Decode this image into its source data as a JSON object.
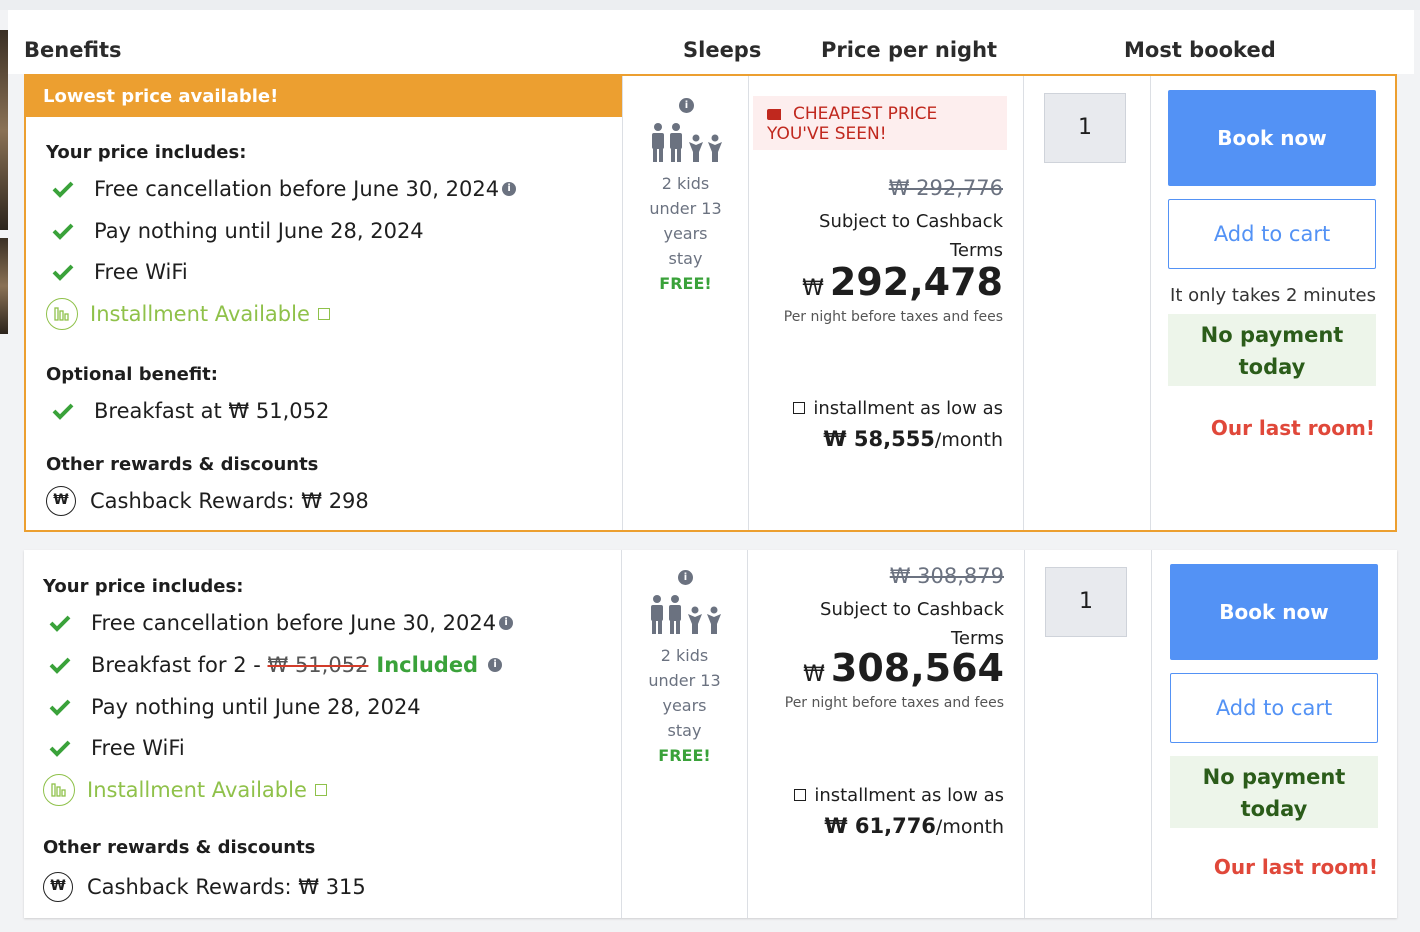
{
  "header": {
    "benefits": "Benefits",
    "sleeps": "Sleeps",
    "price_per_night": "Price per night",
    "most_booked": "Most booked"
  },
  "rooms": [
    {
      "banner": "Lowest price available!",
      "includes_title": "Your price includes:",
      "benefits": [
        "Free cancellation before June 30, 2024",
        "Pay nothing until June 28, 2024",
        "Free WiFi"
      ],
      "installment": "Installment Available",
      "optional_title": "Optional benefit:",
      "optional_benefit": "Breakfast at ₩ 51,052",
      "rewards_title": "Other rewards & discounts",
      "cashback": "Cashback Rewards: ₩ 298",
      "sleeps_text": [
        "2 kids",
        "under 13",
        "years",
        "stay"
      ],
      "free": "FREE!",
      "cheapest_line1": "CHEAPEST PRICE",
      "cheapest_line2": "YOU'VE SEEN!",
      "old_price": "₩ 292,776",
      "subject1": "Subject to Cashback",
      "subject2": "Terms",
      "currency": "₩",
      "price": "292,478",
      "per_night": "Per night before taxes and fees",
      "installment_low": "installment as low as",
      "monthly": "₩ 58,555",
      "monthly_unit": "/month",
      "qty": "1",
      "book": "Book now",
      "cart": "Add to cart",
      "only_takes": "It only takes 2 minutes",
      "no_payment_1": "No payment",
      "no_payment_2": "today",
      "last_room": "Our last room!"
    },
    {
      "includes_title": "Your price includes:",
      "benefit_cancel": "Free cancellation before June 30, 2024",
      "breakfast_prefix": "Breakfast for 2 -",
      "breakfast_old": "₩ 51,052",
      "breakfast_included": "Included",
      "benefit_pay": "Pay nothing until June 28, 2024",
      "benefit_wifi": "Free WiFi",
      "installment": "Installment Available",
      "rewards_title": "Other rewards & discounts",
      "cashback": "Cashback Rewards: ₩ 315",
      "sleeps_text": [
        "2 kids",
        "under 13",
        "years",
        "stay"
      ],
      "free": "FREE!",
      "old_price": "₩ 308,879",
      "subject1": "Subject to Cashback",
      "subject2": "Terms",
      "currency": "₩",
      "price": "308,564",
      "per_night": "Per night before taxes and fees",
      "installment_low": "installment as low as",
      "monthly": "₩ 61,776",
      "monthly_unit": "/month",
      "qty": "1",
      "book": "Book now",
      "cart": "Add to cart",
      "no_payment_1": "No payment",
      "no_payment_2": "today",
      "last_room": "Our last room!"
    }
  ],
  "colors": {
    "accent_orange": "#ec9f30",
    "book_blue": "#5392f5",
    "green_check": "#3aa23a",
    "installment_green": "#8fc14a",
    "red_alert": "#e0483a"
  }
}
